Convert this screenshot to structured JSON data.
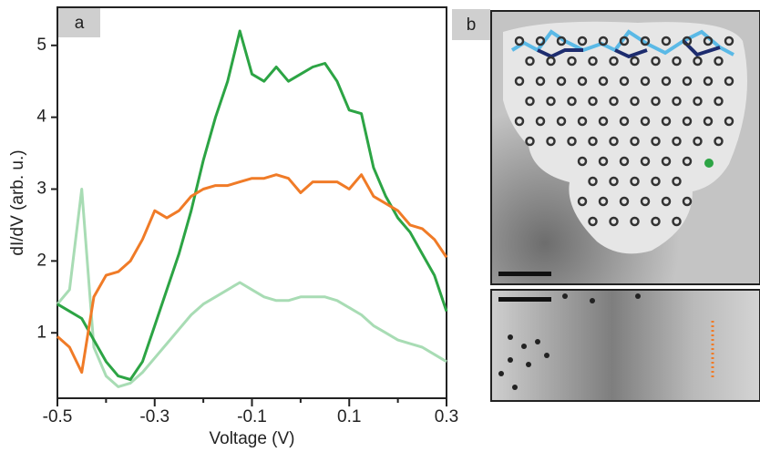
{
  "chart_data": {
    "type": "line",
    "panel_labels": [
      "a",
      "b"
    ],
    "xlabel": "Voltage (V)",
    "ylabel": "dI/dV (arb. u.)",
    "xlim": [
      -0.5,
      0.3
    ],
    "xticks": [
      -0.5,
      -0.3,
      -0.1,
      0.1,
      0.3
    ],
    "xminor": [
      -0.4,
      -0.2,
      0,
      0.2
    ],
    "ylim": [
      0.09,
      5.53
    ],
    "yticks": [
      1,
      2,
      3,
      4,
      5
    ],
    "x": [
      -0.5,
      -0.475,
      -0.45,
      -0.425,
      -0.4,
      -0.375,
      -0.35,
      -0.325,
      -0.3,
      -0.275,
      -0.25,
      -0.225,
      -0.2,
      -0.175,
      -0.15,
      -0.125,
      -0.1,
      -0.075,
      -0.05,
      -0.025,
      0,
      0.025,
      0.05,
      0.075,
      0.1,
      0.125,
      0.15,
      0.175,
      0.2,
      0.225,
      0.25,
      0.275,
      0.3
    ],
    "series": [
      {
        "color": "#a8dcb4",
        "values": [
          1.4,
          1.6,
          3.0,
          0.8,
          0.4,
          0.25,
          0.3,
          0.45,
          0.65,
          0.85,
          1.05,
          1.25,
          1.4,
          1.5,
          1.6,
          1.7,
          1.6,
          1.5,
          1.45,
          1.45,
          1.5,
          1.5,
          1.5,
          1.45,
          1.35,
          1.25,
          1.1,
          1.0,
          0.9,
          0.85,
          0.8,
          0.7,
          0.6
        ]
      },
      {
        "color": "#2ca444",
        "values": [
          1.4,
          1.3,
          1.2,
          0.9,
          0.6,
          0.4,
          0.35,
          0.6,
          1.1,
          1.6,
          2.1,
          2.7,
          3.4,
          4.0,
          4.5,
          5.2,
          4.6,
          4.5,
          4.7,
          4.5,
          4.6,
          4.7,
          4.75,
          4.5,
          4.1,
          4.05,
          3.3,
          2.9,
          2.6,
          2.4,
          2.1,
          1.8,
          1.3
        ]
      },
      {
        "color": "#f07b27",
        "values": [
          0.95,
          0.8,
          0.45,
          1.5,
          1.8,
          1.85,
          2.0,
          2.3,
          2.7,
          2.6,
          2.7,
          2.9,
          3.0,
          3.05,
          3.05,
          3.1,
          3.15,
          3.15,
          3.2,
          3.15,
          2.95,
          3.1,
          3.1,
          3.1,
          3.0,
          3.2,
          2.9,
          2.8,
          2.7,
          2.5,
          2.45,
          2.3,
          2.05
        ]
      }
    ]
  }
}
